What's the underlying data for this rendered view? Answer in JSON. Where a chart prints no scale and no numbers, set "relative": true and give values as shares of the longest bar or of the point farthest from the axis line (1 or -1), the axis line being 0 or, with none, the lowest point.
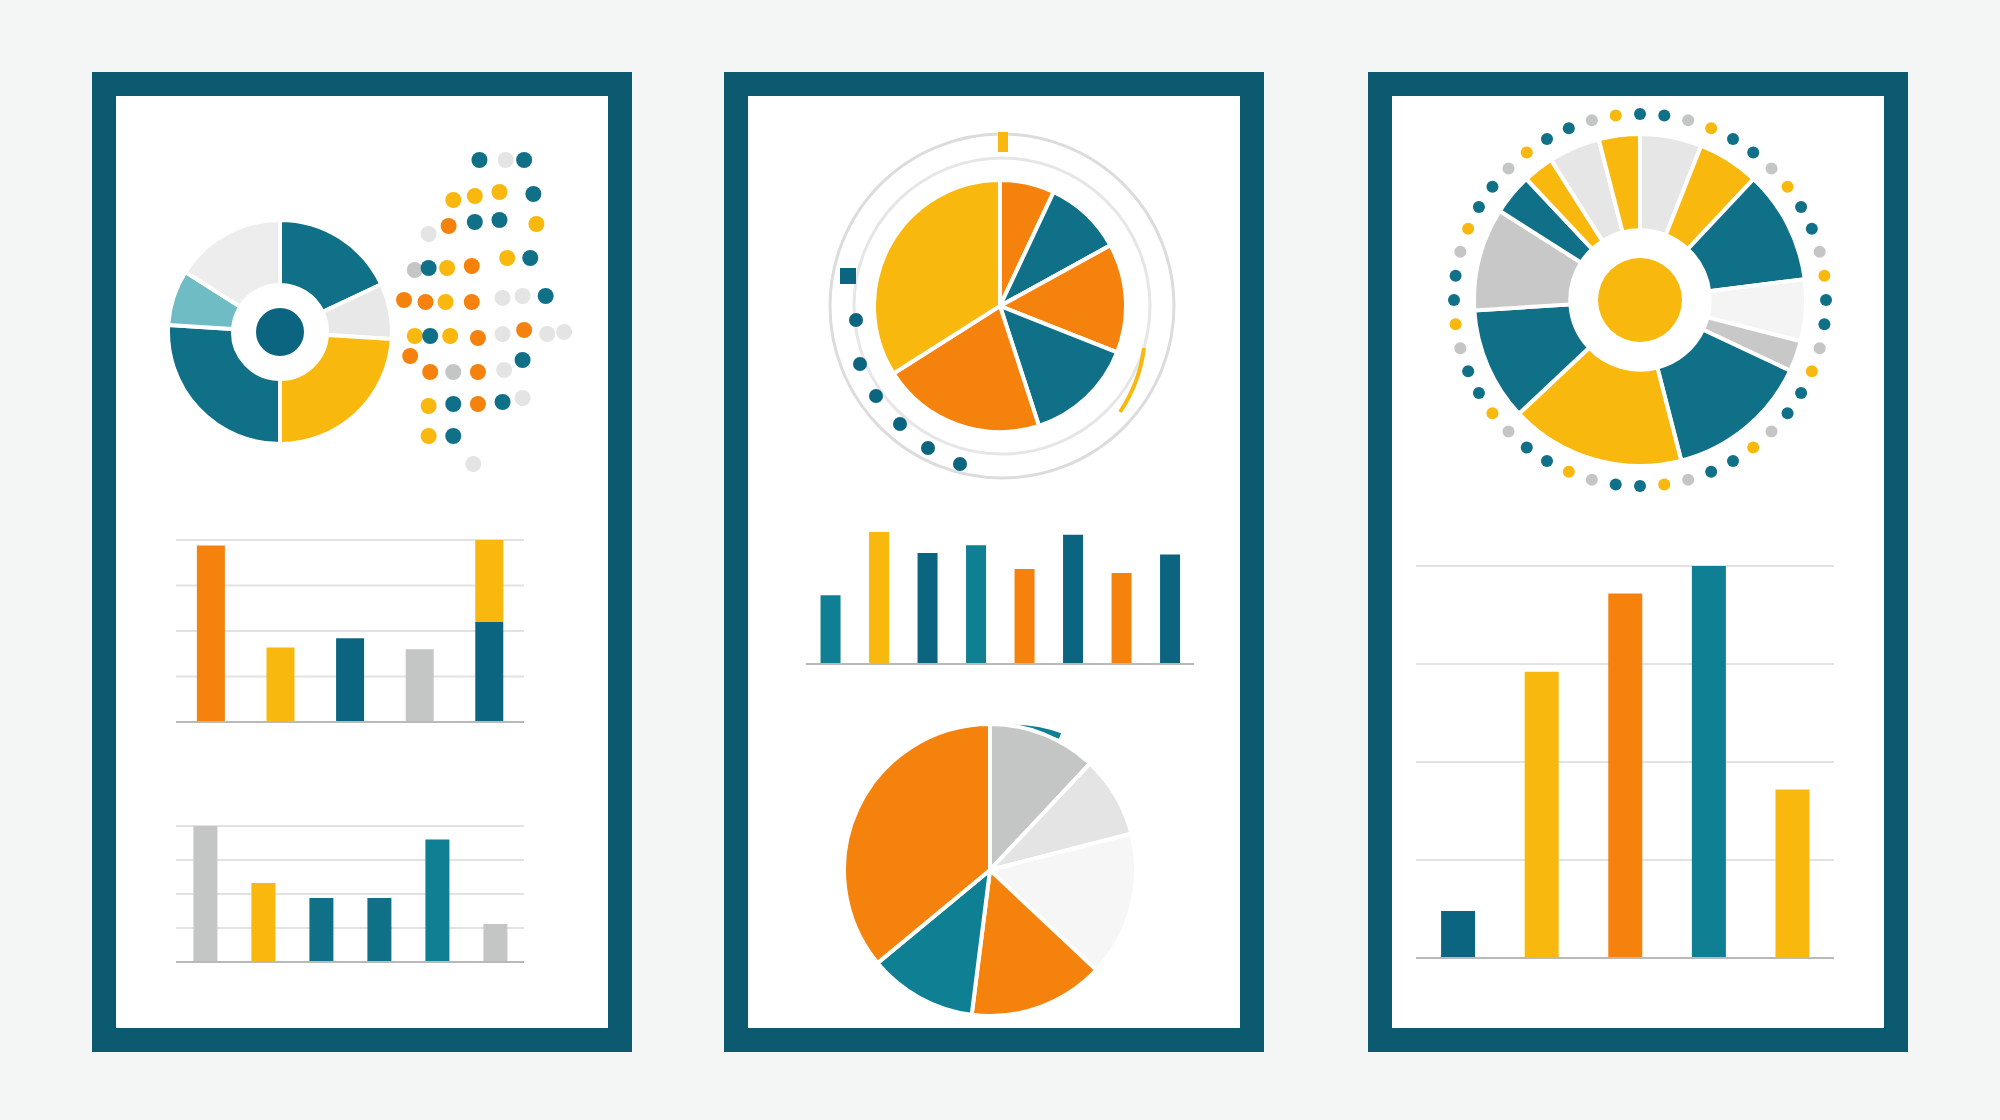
{
  "chart_data": [
    {
      "type": "donut",
      "categories": [
        null,
        null,
        null,
        null,
        null,
        null
      ],
      "values": [
        18,
        8,
        24,
        26,
        8,
        16
      ],
      "colors": [
        "#0f7088",
        "#e8e8e8",
        "#f9b80e",
        "#0f7088",
        "#6fbcc4",
        "#ededed"
      ]
    },
    {
      "type": "bar",
      "relative": true,
      "stacked": true,
      "grid": "y",
      "categories": [
        null,
        null,
        null,
        null,
        null
      ],
      "series": [
        {
          "values": [
            0.97,
            0.41,
            0.46,
            0.4,
            0.55
          ],
          "colors": [
            "#f5820d",
            "#f9b80e",
            "#0c6580",
            "#c4c6c6",
            "#0c6580"
          ]
        },
        {
          "values": [
            null,
            null,
            null,
            null,
            0.45
          ],
          "color": "#f9b80e"
        }
      ]
    },
    {
      "type": "bar",
      "relative": true,
      "grid": "y",
      "categories": [
        null,
        null,
        null,
        null,
        null,
        null
      ],
      "values": [
        1,
        0.58,
        0.47,
        0.47,
        0.9,
        0.28
      ],
      "colors": [
        "#c4c6c6",
        "#f9b80e",
        "#0f7088",
        "#0f7088",
        "#0f7f94",
        "#c4c6c6"
      ]
    },
    {
      "type": "pie",
      "categories": [
        null,
        null,
        null,
        null,
        null,
        null
      ],
      "values": [
        7,
        10,
        14,
        14,
        21,
        34
      ],
      "colors": [
        "#f5820d",
        "#0f7088",
        "#f5820d",
        "#0f7088",
        "#f5820d",
        "#f9b80e"
      ]
    },
    {
      "type": "bar",
      "relative": true,
      "categories": [
        null,
        null,
        null,
        null,
        null,
        null,
        null,
        null
      ],
      "values": [
        0.52,
        1,
        0.84,
        0.9,
        0.72,
        0.98,
        0.69,
        0.83
      ],
      "colors": [
        "#0f7f94",
        "#f9b80e",
        "#0c6580",
        "#0f7f94",
        "#f5820d",
        "#0c6580",
        "#f5820d",
        "#0c6580"
      ]
    },
    {
      "type": "pie",
      "categories": [
        null,
        null,
        null,
        null,
        null,
        null
      ],
      "values": [
        12,
        9,
        16,
        15,
        12,
        36
      ],
      "colors": [
        "#c4c6c6",
        "#e4e4e4",
        "#f6f6f6",
        "#f5820d",
        "#0f7f94",
        "#f5820d"
      ]
    },
    {
      "type": "donut",
      "categories": [
        null,
        null,
        null,
        null,
        null,
        null,
        null,
        null,
        null,
        null,
        null,
        null,
        null
      ],
      "values": [
        6,
        6,
        11,
        6,
        3,
        14,
        17,
        11,
        10,
        4,
        3,
        5,
        4
      ],
      "colors": [
        "#e6e6e6",
        "#f9b80e",
        "#0f7088",
        "#f4f4f4",
        "#c8c8c8",
        "#0f7088",
        "#f9b80e",
        "#0f7088",
        "#c8c8c8",
        "#0f7088",
        "#f9b80e",
        "#e6e6e6",
        "#f9b80e"
      ]
    },
    {
      "type": "bar",
      "relative": true,
      "grid": "y",
      "categories": [
        null,
        null,
        null,
        null,
        null
      ],
      "values": [
        0.12,
        0.73,
        0.93,
        1,
        0.43
      ],
      "colors": [
        "#0c6580",
        "#f9b80e",
        "#f5820d",
        "#0f7f94",
        "#f9b80e"
      ]
    }
  ]
}
